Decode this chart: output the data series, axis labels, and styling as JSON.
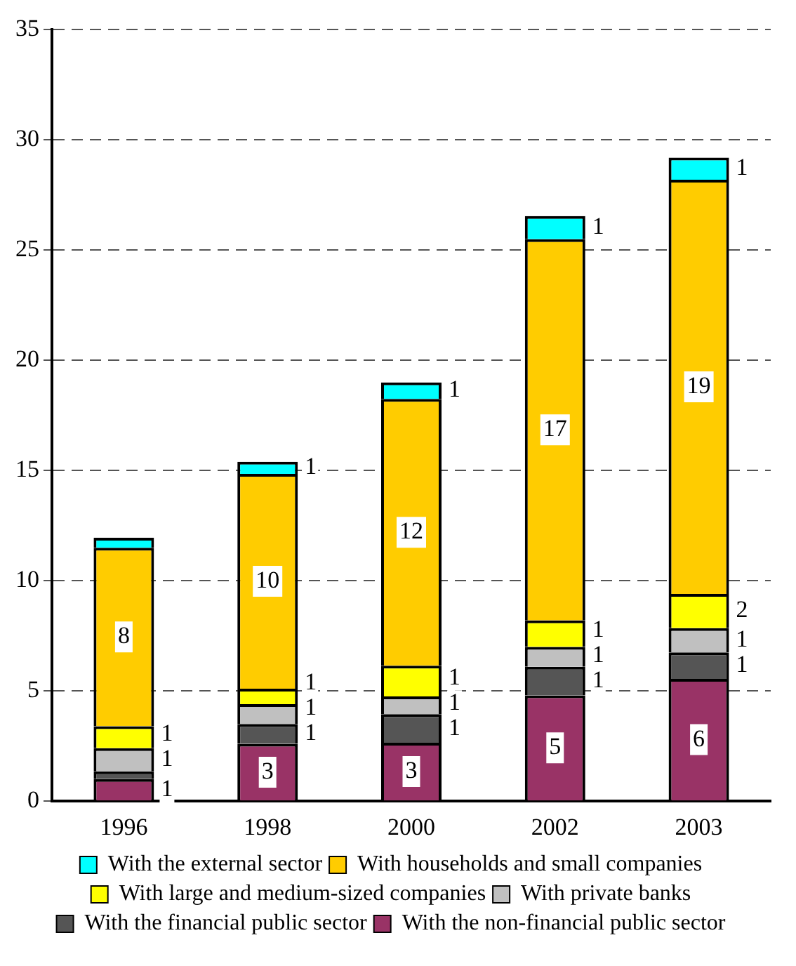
{
  "chart_data": {
    "type": "bar",
    "stacked": true,
    "categories": [
      "1996",
      "1998",
      "2000",
      "2002",
      "2003"
    ],
    "series": [
      {
        "name": "With the non-financial public sector",
        "color": "#993366",
        "values": [
          1.0,
          2.6,
          2.65,
          4.8,
          5.55
        ],
        "value_labels": [
          "1",
          "3",
          "3",
          "5",
          "6"
        ]
      },
      {
        "name": "With the financial public sector",
        "color": "#555555",
        "values": [
          0.35,
          0.9,
          1.3,
          1.3,
          1.2
        ],
        "value_labels": [
          null,
          "1",
          "1",
          "1",
          "1"
        ]
      },
      {
        "name": "With private banks",
        "color": "#c0c0c0",
        "values": [
          1.05,
          0.9,
          0.8,
          0.9,
          1.1
        ],
        "value_labels": [
          "1",
          "1",
          "1",
          "1",
          "1"
        ]
      },
      {
        "name": "With large and medium-sized companies",
        "color": "#ffff00",
        "values": [
          1.0,
          0.7,
          1.4,
          1.2,
          1.55
        ],
        "value_labels": [
          "1",
          "1",
          "1",
          "1",
          "2"
        ]
      },
      {
        "name": "With households and small companies",
        "color": "#ffcc00",
        "values": [
          8.1,
          9.75,
          12.1,
          17.3,
          18.8
        ],
        "value_labels": [
          "8",
          "10",
          "12",
          "17",
          "19"
        ]
      },
      {
        "name": "With the external sector",
        "color": "#00ffff",
        "values": [
          0.45,
          0.55,
          0.75,
          1.05,
          1.0
        ],
        "value_labels": [
          null,
          "1",
          "1",
          "1",
          "1"
        ]
      }
    ],
    "ylim": [
      0,
      35
    ],
    "yticks": [
      0,
      5,
      10,
      15,
      20,
      25,
      30,
      35
    ],
    "grid": "y",
    "legend": "bottom"
  }
}
